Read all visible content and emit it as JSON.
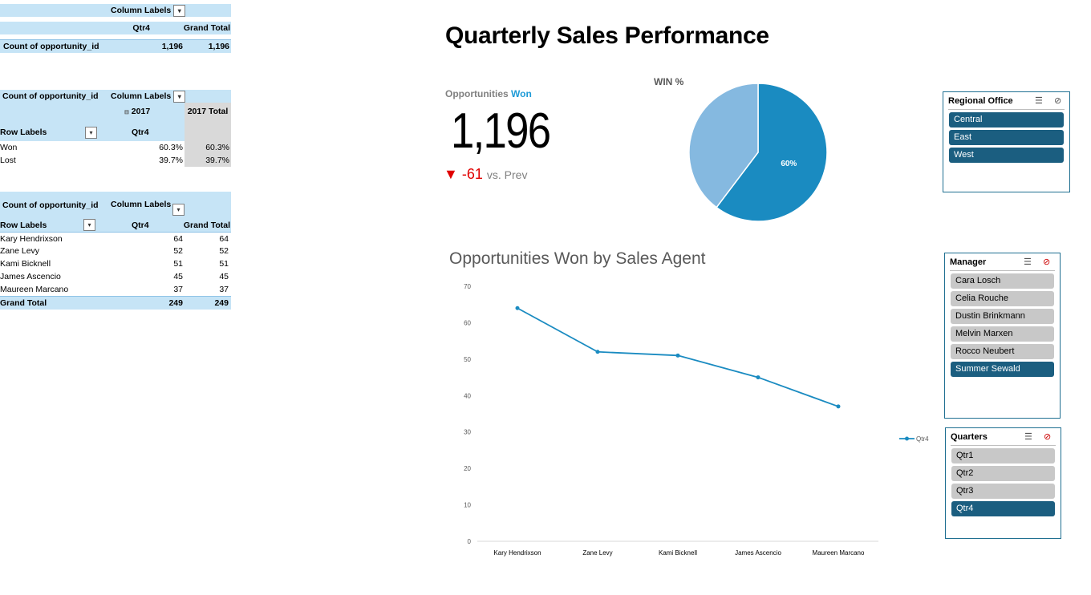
{
  "pivot1": {
    "col_labels": "Column Labels",
    "qtr": "Qtr4",
    "grand_total": "Grand Total",
    "row_label": "Count of opportunity_id",
    "v1": "1,196",
    "v2": "1,196"
  },
  "pivot2": {
    "count_label": "Count of opportunity_id",
    "col_labels": "Column Labels",
    "year": "2017",
    "year_total": "2017 Total",
    "row_labels": "Row Labels",
    "qtr": "Qtr4",
    "rows": [
      {
        "label": "Won",
        "v1": "60.3%",
        "v2": "60.3%"
      },
      {
        "label": "Lost",
        "v1": "39.7%",
        "v2": "39.7%"
      }
    ]
  },
  "pivot3": {
    "count_label": "Count of opportunity_id",
    "col_labels": "Column Labels",
    "row_labels": "Row Labels",
    "qtr": "Qtr4",
    "grand_total": "Grand Total",
    "rows": [
      {
        "label": "Kary Hendrixson",
        "v1": "64",
        "v2": "64"
      },
      {
        "label": "Zane Levy",
        "v1": "52",
        "v2": "52"
      },
      {
        "label": "Kami Bicknell",
        "v1": "51",
        "v2": "51"
      },
      {
        "label": "James Ascencio",
        "v1": "45",
        "v2": "45"
      },
      {
        "label": "Maureen Marcano",
        "v1": "37",
        "v2": "37"
      }
    ],
    "total_label": "Grand Total",
    "total_v1": "249",
    "total_v2": "249"
  },
  "dashboard": {
    "title": "Quarterly Sales Performance",
    "kpi_label_1": "Opportunities",
    "kpi_label_2": "Won",
    "kpi_value": "1,196",
    "delta_arrow": "▼",
    "delta_value": "-61",
    "delta_suffix": "vs. Prev"
  },
  "slicers": {
    "regional": {
      "title": "Regional Office",
      "items": [
        {
          "label": "Central",
          "selected": true
        },
        {
          "label": "East",
          "selected": true
        },
        {
          "label": "West",
          "selected": true
        }
      ]
    },
    "manager": {
      "title": "Manager",
      "items": [
        {
          "label": "Cara Losch",
          "selected": false
        },
        {
          "label": "Celia Rouche",
          "selected": false
        },
        {
          "label": "Dustin Brinkmann",
          "selected": false
        },
        {
          "label": "Melvin Marxen",
          "selected": false
        },
        {
          "label": "Rocco Neubert",
          "selected": false
        },
        {
          "label": "Summer Sewald",
          "selected": true
        }
      ]
    },
    "quarters": {
      "title": "Quarters",
      "items": [
        {
          "label": "Qtr1",
          "selected": false
        },
        {
          "label": "Qtr2",
          "selected": false
        },
        {
          "label": "Qtr3",
          "selected": false
        },
        {
          "label": "Qtr4",
          "selected": true
        }
      ]
    }
  },
  "chart_data": [
    {
      "type": "pie",
      "title": "WIN %",
      "values": [
        60.3,
        39.7
      ],
      "data_labels": [
        "60%",
        ""
      ],
      "colors": [
        "#1a8bc1",
        "#85b9e0"
      ]
    },
    {
      "type": "line",
      "title": "Opportunities Won by Sales Agent",
      "categories": [
        "Kary Hendrixson",
        "Zane Levy",
        "Kami Bicknell",
        "James Ascencio",
        "Maureen Marcano"
      ],
      "series": [
        {
          "name": "Qtr4",
          "values": [
            64,
            52,
            51,
            45,
            37
          ]
        }
      ],
      "ylim": [
        0,
        70
      ],
      "yticks": [
        "0",
        "10",
        "20",
        "30",
        "40",
        "50",
        "60",
        "70"
      ],
      "legend": "right",
      "color": "#1a8bc1"
    }
  ]
}
